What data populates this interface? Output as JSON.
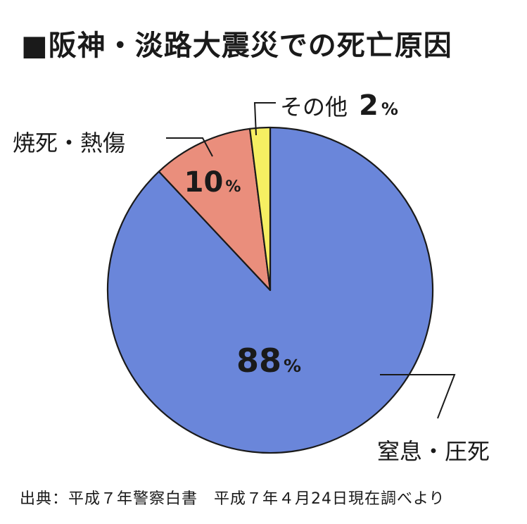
{
  "title": "■阪神・淡路大震災での死亡原因",
  "source": "出典：平成７年警察白書　平成７年４月24日現在調べより",
  "chart_data": {
    "type": "pie",
    "title": "■阪神・淡路大震災での死亡原因",
    "start": "top",
    "direction": "clockwise",
    "slices": [
      {
        "name": "窒息・圧死",
        "value": 88,
        "value_text": "88",
        "unit": "%",
        "color": "#6a86da"
      },
      {
        "name": "焼死・熱傷",
        "value": 10,
        "value_text": "10",
        "unit": "%",
        "color": "#ea8e7c"
      },
      {
        "name": "その他",
        "value": 2,
        "value_text": "2",
        "unit": "%",
        "color": "#f6ef62"
      }
    ]
  }
}
